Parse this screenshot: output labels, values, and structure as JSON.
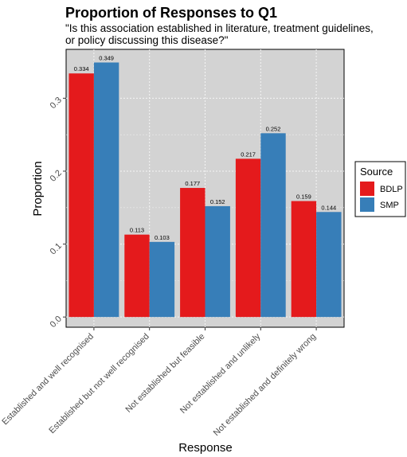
{
  "chart_data": {
    "type": "bar",
    "title": "Proportion of Responses to Q1",
    "subtitle_lines": [
      "\"Is this association established in literature, treatment guidelines,",
      "or policy discussing this disease?\""
    ],
    "xlabel": "Response",
    "ylabel": "Proportion",
    "categories": [
      "Established and well recognised",
      "Established but not well recognised",
      "Not established but feasible",
      "Not established and unlikely",
      "Not established and definitely wrong"
    ],
    "series": [
      {
        "name": "BDLP",
        "color": "#e41a1c",
        "values": [
          0.334,
          0.113,
          0.177,
          0.217,
          0.159
        ]
      },
      {
        "name": "SMP",
        "color": "#377eb8",
        "values": [
          0.349,
          0.103,
          0.152,
          0.252,
          0.144
        ]
      }
    ],
    "data_labels": [
      [
        "0.334",
        "0.113",
        "0.177",
        "0.217",
        "0.159"
      ],
      [
        "0.349",
        "0.103",
        "0.152",
        "0.252",
        "0.144"
      ]
    ],
    "yticks": [
      0.0,
      0.1,
      0.2,
      0.3
    ],
    "ytick_labels": [
      "0.0",
      "0.1",
      "0.2",
      "0.3"
    ],
    "ylim": [
      -0.014,
      0.367
    ],
    "grid": true,
    "legend": {
      "title": "Source",
      "placement": "right"
    },
    "panel_background": "#d3d3d3"
  }
}
